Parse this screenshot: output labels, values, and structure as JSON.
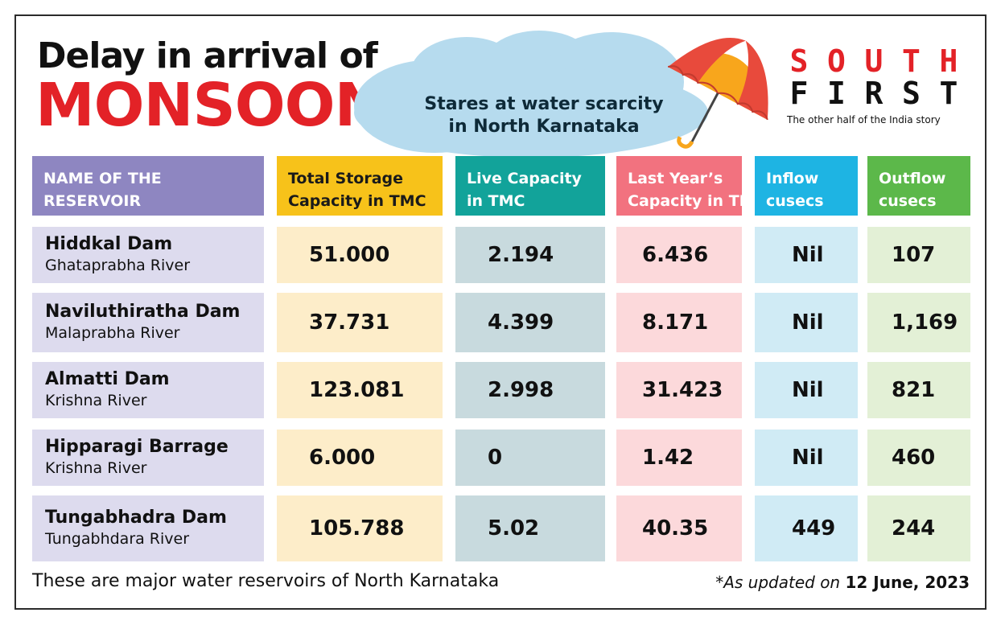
{
  "title": {
    "line1": "Delay in arrival of",
    "line2": "MONSOON"
  },
  "subtitle": {
    "line1": "Stares at water scarcity",
    "line2": "in North Karnataka"
  },
  "logo": {
    "row1": [
      "S",
      "O",
      "U",
      "T",
      "H"
    ],
    "row2": [
      "F",
      "I",
      "R",
      "S",
      "T"
    ],
    "tagline": "The other half of the India story"
  },
  "colors": {
    "title_red": "#e32227",
    "col_name": "#8e86c1",
    "col_name_bg": "#dddbee",
    "col_total": "#f7c21a",
    "col_total_bg": "#fdedc9",
    "col_live": "#12a39a",
    "col_live_bg": "#c8dade",
    "col_last": "#f2727f",
    "col_last_bg": "#fcd9db",
    "col_inflow": "#1eb4e3",
    "col_inflow_bg": "#d0ebf5",
    "col_outflow": "#5cb84a",
    "col_outflow_bg": "#e3f0d6"
  },
  "chart_data": {
    "type": "table",
    "columns": [
      "NAME OF THE RESERVOIR",
      "Total Storage Capacity in TMC",
      "Live Capacity in TMC",
      "Last Year’s Capacity in TMC",
      "Inflow cusecs",
      "Outflow cusecs"
    ],
    "column_lines": [
      [
        "NAME OF THE",
        "RESERVOIR"
      ],
      [
        "Total Storage",
        "Capacity in TMC"
      ],
      [
        "Live Capacity",
        "in TMC"
      ],
      [
        "Last Year’s",
        "Capacity in TMC"
      ],
      [
        "Inflow",
        "cusecs"
      ],
      [
        "Outflow",
        "cusecs"
      ]
    ],
    "rows": [
      {
        "name": "Hiddkal Dam",
        "river": "Ghataprabha River",
        "total": "51.000",
        "live": "2.194",
        "last_year": "6.436",
        "inflow": "Nil",
        "outflow": "107"
      },
      {
        "name": "Naviluthiratha Dam",
        "river": "Malaprabha River",
        "total": "37.731",
        "live": "4.399",
        "last_year": "8.171",
        "inflow": "Nil",
        "outflow": "1,169"
      },
      {
        "name": "Almatti Dam",
        "river": "Krishna River",
        "total": "123.081",
        "live": "2.998",
        "last_year": "31.423",
        "inflow": "Nil",
        "outflow": "821"
      },
      {
        "name": "Hipparagi Barrage",
        "river": "Krishna River",
        "total": "6.000",
        "live": "0",
        "last_year": "1.42",
        "inflow": "Nil",
        "outflow": "460"
      },
      {
        "name": "Tungabhadra Dam",
        "river": "Tungabhdara River",
        "total": "105.788",
        "live": "5.02",
        "last_year": "40.35",
        "inflow": "449",
        "outflow": "244"
      }
    ]
  },
  "footnote": "These are major water reservoirs of North Karnataka",
  "updated": {
    "prefix": "*As updated on",
    "date": "12 June, 2023"
  },
  "icons": {
    "cloud": "cloud-icon",
    "umbrella": "umbrella-icon"
  }
}
